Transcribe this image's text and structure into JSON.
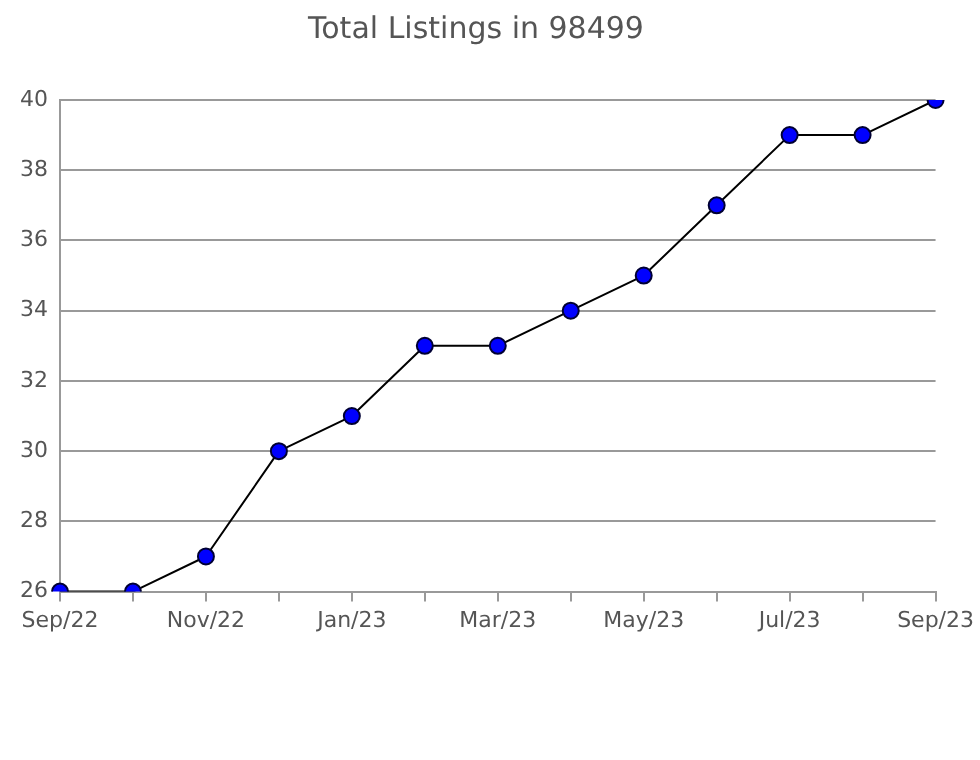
{
  "chart_data": {
    "type": "line",
    "title": "Total Listings in 98499",
    "categories": [
      "Sep/22",
      null,
      "Nov/22",
      null,
      "Jan/23",
      null,
      "Mar/23",
      null,
      "May/23",
      null,
      "Jul/23",
      null,
      "Sep/23"
    ],
    "series": [
      {
        "color": "#0000ff",
        "values": [
          26,
          26,
          27,
          30,
          31,
          33,
          33,
          34,
          35,
          37,
          39,
          39,
          40
        ]
      }
    ],
    "ylim": [
      26,
      40
    ],
    "yticks": [
      26,
      28,
      30,
      32,
      34,
      36,
      38,
      40
    ],
    "grid": "y",
    "marker": "circle",
    "line_style": "solid",
    "legend": false
  }
}
